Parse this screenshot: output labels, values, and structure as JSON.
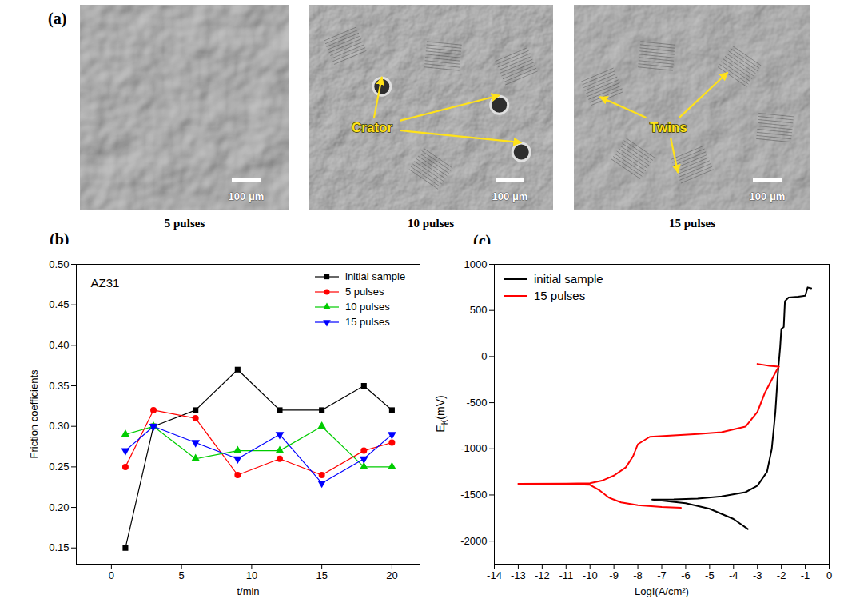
{
  "chart_data": [
    {
      "type": "image",
      "panel": "(a)",
      "images": [
        {
          "caption": "5 pulses",
          "scale_bar": "100 μm"
        },
        {
          "caption": "10 pulses",
          "scale_bar": "100 μm",
          "annotation": "Crator",
          "arrows": 3
        },
        {
          "caption": "15 pulses",
          "scale_bar": "100 μm",
          "annotation": "Twins",
          "arrows": 3
        }
      ]
    },
    {
      "type": "line",
      "panel": "(b)",
      "title": "AZ31",
      "xlabel": "t/min",
      "ylabel": "Friction coefficients",
      "x": [
        1,
        3,
        6,
        9,
        12,
        15,
        18,
        20
      ],
      "xlim": [
        -2.5,
        22
      ],
      "xticks": [
        0,
        5,
        10,
        15,
        20
      ],
      "ylim": [
        0.13,
        0.5
      ],
      "yticks": [
        0.15,
        {
          "value": 0.2,
          "label": "0.20"
        },
        0.25,
        {
          "value": 0.3,
          "label": "0.30"
        },
        0.35,
        {
          "value": 0.4,
          "label": "0.40"
        },
        0.45,
        {
          "value": 0.5,
          "label": "0.50"
        }
      ],
      "legend": "top-right",
      "series": [
        {
          "name": "initial sample",
          "color": "#000000",
          "marker": "square",
          "values": [
            0.15,
            0.3,
            0.32,
            0.37,
            0.32,
            0.32,
            0.35,
            0.32
          ]
        },
        {
          "name": "5 pulses",
          "color": "#ff0000",
          "marker": "circle",
          "values": [
            0.25,
            0.32,
            0.31,
            0.24,
            0.26,
            0.24,
            0.27,
            0.28
          ]
        },
        {
          "name": "10 pulses",
          "color": "#00cc00",
          "marker": "triangle",
          "values": [
            0.29,
            0.3,
            0.26,
            0.27,
            0.27,
            0.3,
            0.25,
            0.25
          ]
        },
        {
          "name": "15 pulses",
          "color": "#0000ff",
          "marker": "triangle-down",
          "values": [
            0.27,
            0.3,
            0.28,
            0.26,
            0.29,
            0.23,
            0.26,
            0.29
          ]
        }
      ]
    },
    {
      "type": "line",
      "panel": "(c)",
      "xlabel": "LogI(A/cm²)",
      "ylabel": "E",
      "ylabel_subscript": "K",
      "ylabel_unit": "(mV)",
      "xlim": [
        -14,
        0
      ],
      "xticks": [
        -14,
        -13,
        -12,
        -11,
        -10,
        -9,
        -8,
        -7,
        -6,
        -5,
        -4,
        -3,
        -2,
        -1,
        0
      ],
      "ylim": [
        -2250,
        1000
      ],
      "yticks": [
        -2000,
        -1500,
        -1000,
        -500,
        0,
        500,
        1000
      ],
      "legend": "top-left",
      "series": [
        {
          "name": "initial sample",
          "color": "#000000",
          "x": [
            -3.4,
            -4,
            -5,
            -6,
            -7,
            -7.4,
            -6.5,
            -5.5,
            -4.5,
            -3.5,
            -3,
            -2.6,
            -2.4,
            -2.25,
            -2.15,
            -2.05,
            -2.0,
            -1.9,
            -1.85,
            -1.7,
            -1.3,
            -1.0,
            -0.9,
            -0.75
          ],
          "values": [
            -1870,
            -1760,
            -1650,
            -1590,
            -1560,
            -1550,
            -1548,
            -1540,
            -1515,
            -1470,
            -1400,
            -1250,
            -1000,
            -600,
            -200,
            100,
            300,
            320,
            600,
            640,
            650,
            660,
            750,
            740
          ]
        },
        {
          "name": "15 pulses",
          "color": "#ff0000",
          "x": [
            -6.2,
            -7,
            -8,
            -8.7,
            -9.2,
            -9.6,
            -10,
            -11,
            -12,
            -13,
            -11,
            -10,
            -9.5,
            -9,
            -8.5,
            -8.2,
            -8,
            -7.5,
            -6.5,
            -5.5,
            -4.5,
            -3.5,
            -3,
            -2.7,
            -2.4,
            -2.2,
            -2.1,
            -2.5,
            -3
          ],
          "values": [
            -1640,
            -1630,
            -1610,
            -1580,
            -1530,
            -1450,
            -1390,
            -1382,
            -1380,
            -1378,
            -1376,
            -1372,
            -1345,
            -1290,
            -1200,
            -1080,
            -950,
            -870,
            -855,
            -840,
            -820,
            -760,
            -600,
            -400,
            -250,
            -150,
            -110,
            -100,
            -80
          ]
        }
      ]
    }
  ]
}
